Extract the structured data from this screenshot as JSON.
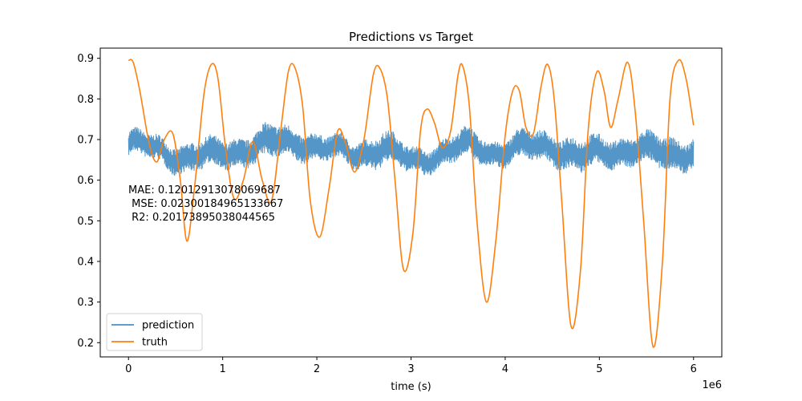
{
  "chart_data": {
    "type": "line",
    "title": "Predictions vs Target",
    "xlabel": "time (s)",
    "ylabel": "",
    "x_offset_label": "1e6",
    "xlim": [
      -0.3,
      6.3
    ],
    "ylim": [
      0.165,
      0.925
    ],
    "x_ticks": [
      0,
      1,
      2,
      3,
      4,
      5,
      6
    ],
    "x_tick_labels": [
      "0",
      "1",
      "2",
      "3",
      "4",
      "5",
      "6"
    ],
    "y_ticks": [
      0.2,
      0.3,
      0.4,
      0.5,
      0.6,
      0.7,
      0.8,
      0.9
    ],
    "y_tick_labels": [
      "0.2",
      "0.3",
      "0.4",
      "0.5",
      "0.6",
      "0.7",
      "0.8",
      "0.9"
    ],
    "grid": false,
    "legend_position": "lower-left",
    "annotation": {
      "lines": [
        "MAE: 0.12012913078069687",
        " MSE: 0.023001849651336​67",
        " R2: 0.20173895038044565"
      ]
    },
    "series": [
      {
        "name": "prediction",
        "color": "#4a90c4",
        "style": "noisy-band",
        "x": [
          0,
          0.3,
          0.6,
          0.9,
          1.2,
          1.5,
          1.8,
          2.1,
          2.4,
          2.7,
          3.0,
          3.3,
          3.6,
          3.9,
          4.2,
          4.5,
          4.8,
          5.1,
          5.4,
          5.7,
          6.0
        ],
        "center": [
          0.69,
          0.675,
          0.655,
          0.66,
          0.675,
          0.69,
          0.695,
          0.675,
          0.665,
          0.68,
          0.645,
          0.665,
          0.685,
          0.67,
          0.68,
          0.685,
          0.655,
          0.67,
          0.68,
          0.66,
          0.675
        ],
        "amplitude": [
          0.03,
          0.03,
          0.035,
          0.035,
          0.035,
          0.04,
          0.035,
          0.03,
          0.03,
          0.04,
          0.03,
          0.03,
          0.035,
          0.03,
          0.035,
          0.035,
          0.04,
          0.035,
          0.035,
          0.04,
          0.035
        ]
      },
      {
        "name": "truth",
        "color": "#ff7f0e",
        "style": "line",
        "x": [
          0.0,
          0.05,
          0.12,
          0.22,
          0.3,
          0.38,
          0.47,
          0.55,
          0.62,
          0.7,
          0.8,
          0.88,
          0.95,
          1.03,
          1.12,
          1.22,
          1.32,
          1.42,
          1.52,
          1.62,
          1.7,
          1.77,
          1.85,
          1.93,
          2.03,
          2.13,
          2.22,
          2.3,
          2.4,
          2.5,
          2.6,
          2.67,
          2.75,
          2.83,
          2.92,
          3.02,
          3.1,
          3.17,
          3.25,
          3.33,
          3.42,
          3.5,
          3.55,
          3.62,
          3.7,
          3.8,
          3.9,
          4.0,
          4.08,
          4.15,
          4.22,
          4.3,
          4.38,
          4.45,
          4.52,
          4.6,
          4.7,
          4.8,
          4.88,
          4.97,
          5.05,
          5.12,
          5.2,
          5.3,
          5.38,
          5.47,
          5.57,
          5.67,
          5.75,
          5.84,
          5.92,
          6.0
        ],
        "values": [
          0.895,
          0.89,
          0.82,
          0.69,
          0.645,
          0.7,
          0.715,
          0.6,
          0.45,
          0.58,
          0.81,
          0.885,
          0.85,
          0.68,
          0.555,
          0.6,
          0.695,
          0.6,
          0.55,
          0.73,
          0.87,
          0.875,
          0.78,
          0.55,
          0.46,
          0.58,
          0.72,
          0.695,
          0.62,
          0.7,
          0.86,
          0.875,
          0.8,
          0.6,
          0.38,
          0.47,
          0.72,
          0.775,
          0.74,
          0.68,
          0.72,
          0.86,
          0.88,
          0.78,
          0.5,
          0.3,
          0.45,
          0.71,
          0.82,
          0.82,
          0.73,
          0.715,
          0.83,
          0.885,
          0.8,
          0.55,
          0.24,
          0.38,
          0.72,
          0.865,
          0.82,
          0.73,
          0.8,
          0.89,
          0.77,
          0.5,
          0.19,
          0.4,
          0.8,
          0.895,
          0.85,
          0.735
        ]
      }
    ]
  }
}
